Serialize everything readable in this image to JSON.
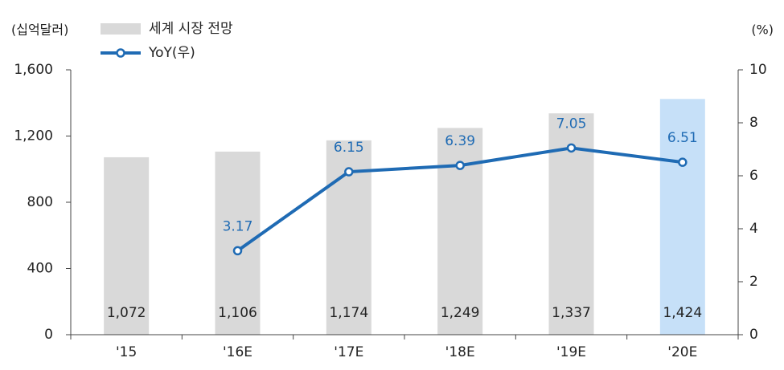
{
  "chart_data": {
    "type": "combo",
    "y_label": "(십억달러)",
    "y2_label": "(%)",
    "categories": [
      "'15",
      "'16E",
      "'17E",
      "'18E",
      "'19E",
      "'20E"
    ],
    "series": [
      {
        "name": "세계 시장 전망",
        "type": "bar",
        "color": "#d9d9d9",
        "colors": [
          "#d9d9d9",
          "#d9d9d9",
          "#d9d9d9",
          "#d9d9d9",
          "#d9d9d9",
          "#c6e0f8"
        ],
        "values": [
          1072,
          1106,
          1174,
          1249,
          1337,
          1424
        ],
        "value_labels": [
          "1,072",
          "1,106",
          "1,174",
          "1,249",
          "1,337",
          "1,424"
        ]
      },
      {
        "name": "YoY(우)",
        "type": "line",
        "axis": "y2",
        "color": "#1f6bb4",
        "values": [
          null,
          3.17,
          6.15,
          6.39,
          7.05,
          6.51
        ]
      }
    ],
    "ylim": [
      0,
      1600
    ],
    "yticks": [
      0,
      400,
      800,
      {
        "value": 1200,
        "label": "1,200"
      },
      {
        "value": 1600,
        "label": "1,600"
      }
    ],
    "y2lim": [
      0,
      10
    ],
    "y2ticks": [
      0,
      2,
      4,
      6,
      8,
      10
    ]
  }
}
